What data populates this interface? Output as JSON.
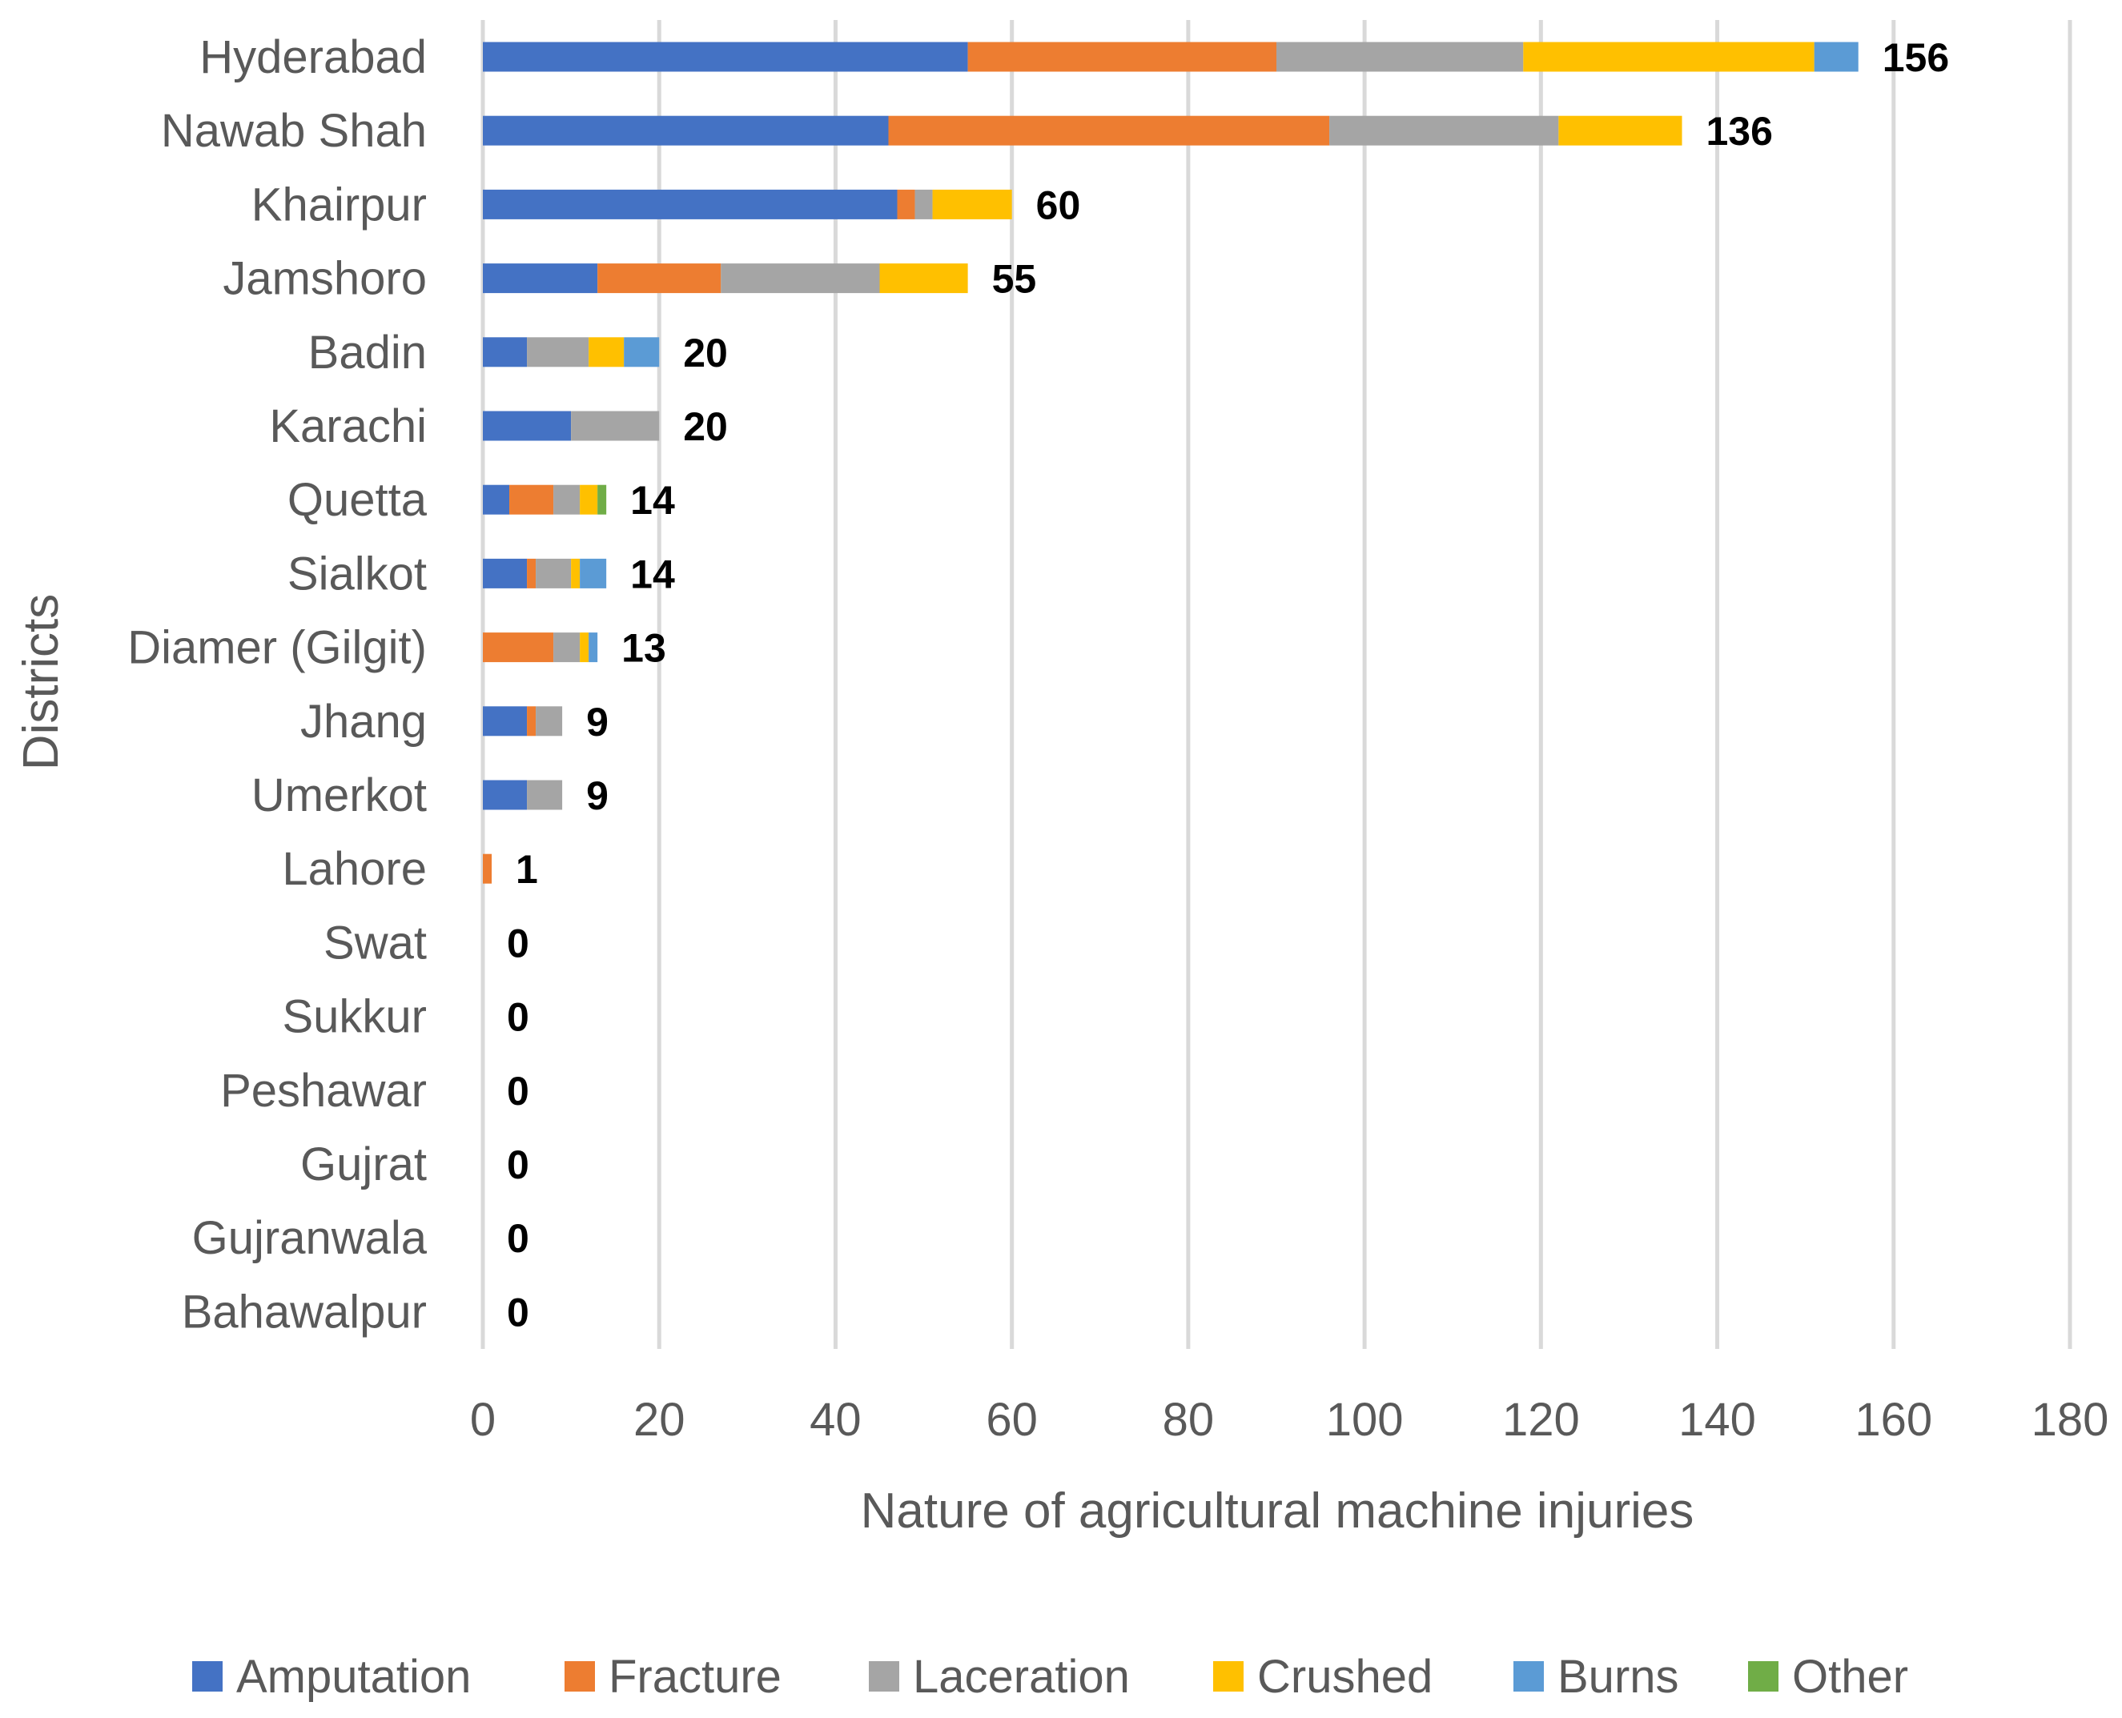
{
  "chart_data": {
    "type": "bar",
    "orientation": "horizontal",
    "stacked": true,
    "title": "",
    "xlabel": "Nature of agricultural machine injuries",
    "ylabel": "Districts",
    "xlim": [
      0,
      180
    ],
    "xticks": [
      0,
      20,
      40,
      60,
      80,
      100,
      120,
      140,
      160,
      180
    ],
    "grid": true,
    "legend_position": "bottom",
    "categories": [
      "Hyderabad",
      "Nawab Shah",
      "Khairpur",
      "Jamshoro",
      "Badin",
      "Karachi",
      "Quetta",
      "Sialkot",
      "Diamer (Gilgit)",
      "Jhang",
      "Umerkot",
      "Lahore",
      "Swat",
      "Sukkur",
      "Peshawar",
      "Gujrat",
      "Gujranwala",
      "Bahawalpur"
    ],
    "series": [
      {
        "name": "Amputation",
        "color": "#4472c4",
        "values": [
          55,
          46,
          47,
          13,
          5,
          10,
          3,
          5,
          0,
          5,
          5,
          0,
          0,
          0,
          0,
          0,
          0,
          0
        ]
      },
      {
        "name": "Fracture",
        "color": "#ed7d31",
        "values": [
          35,
          50,
          2,
          14,
          0,
          0,
          5,
          1,
          8,
          1,
          0,
          1,
          0,
          0,
          0,
          0,
          0,
          0
        ]
      },
      {
        "name": "Laceration",
        "color": "#a5a5a5",
        "values": [
          28,
          26,
          2,
          18,
          7,
          10,
          3,
          4,
          3,
          3,
          4,
          0,
          0,
          0,
          0,
          0,
          0,
          0
        ]
      },
      {
        "name": "Crushed",
        "color": "#ffc000",
        "values": [
          33,
          14,
          9,
          10,
          4,
          0,
          2,
          1,
          1,
          0,
          0,
          0,
          0,
          0,
          0,
          0,
          0,
          0
        ]
      },
      {
        "name": "Burns",
        "color": "#5b9bd5",
        "values": [
          5,
          0,
          0,
          0,
          4,
          0,
          0,
          3,
          1,
          0,
          0,
          0,
          0,
          0,
          0,
          0,
          0,
          0
        ]
      },
      {
        "name": "Other",
        "color": "#70ad47",
        "values": [
          0,
          0,
          0,
          0,
          0,
          0,
          1,
          0,
          0,
          0,
          0,
          0,
          0,
          0,
          0,
          0,
          0,
          0
        ]
      }
    ],
    "totals": [
      "156",
      "136",
      "60",
      "55",
      "20",
      "20",
      "14",
      "14",
      "13",
      "9",
      "9",
      "1",
      "0",
      "0",
      "0",
      "0",
      "0",
      "0"
    ]
  }
}
